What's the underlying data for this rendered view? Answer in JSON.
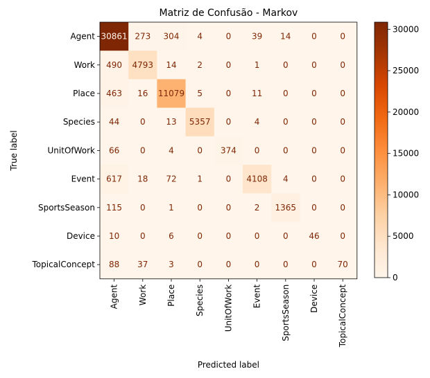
{
  "chart_data": {
    "type": "heatmap",
    "title": "Matriz de Confusão - Markov",
    "xlabel": "Predicted label",
    "ylabel": "True label",
    "classes": [
      "Agent",
      "Work",
      "Place",
      "Species",
      "UnitOfWork",
      "Event",
      "SportsSeason",
      "Device",
      "TopicalConcept"
    ],
    "matrix": [
      [
        30861,
        273,
        304,
        4,
        0,
        39,
        14,
        0,
        0
      ],
      [
        490,
        4793,
        14,
        2,
        0,
        1,
        0,
        0,
        0
      ],
      [
        463,
        16,
        11079,
        5,
        0,
        11,
        0,
        0,
        0
      ],
      [
        44,
        0,
        13,
        5357,
        0,
        4,
        0,
        0,
        0
      ],
      [
        66,
        0,
        4,
        0,
        374,
        0,
        0,
        0,
        0
      ],
      [
        617,
        18,
        72,
        1,
        0,
        4108,
        4,
        0,
        0
      ],
      [
        115,
        0,
        1,
        0,
        0,
        2,
        1365,
        0,
        0
      ],
      [
        10,
        0,
        6,
        0,
        0,
        0,
        0,
        46,
        0
      ],
      [
        88,
        37,
        3,
        0,
        0,
        0,
        0,
        0,
        70
      ]
    ],
    "colormap": "Oranges",
    "colorbar": {
      "min": 0,
      "max": 30861,
      "ticks": [
        "0",
        "5000",
        "10000",
        "15000",
        "20000",
        "25000",
        "30000"
      ]
    },
    "grid": false
  }
}
